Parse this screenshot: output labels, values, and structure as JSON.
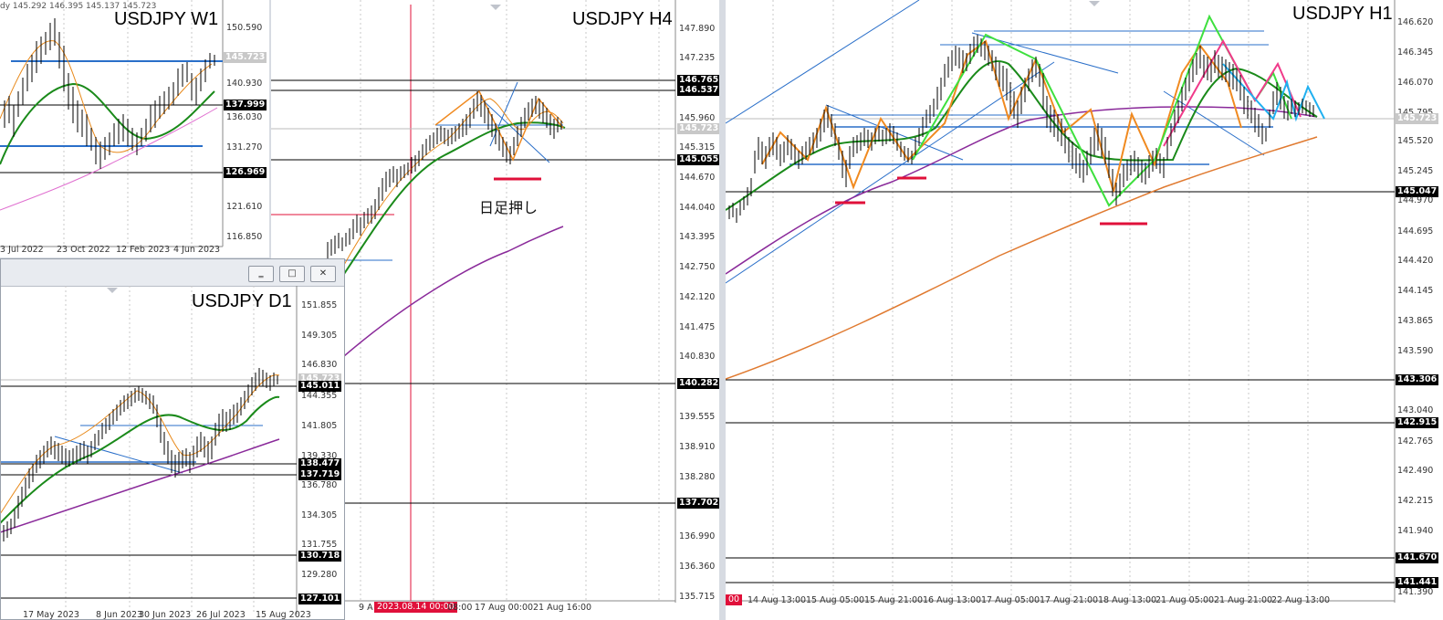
{
  "windows": {
    "w1": {
      "title": "USDJPY W1",
      "header_text": "dy  145.292 146.395 145.137 145.723",
      "price_axis": [
        "150.590",
        "145.723",
        "140.930",
        "137.999",
        "136.030",
        "131.270",
        "126.969",
        "121.610",
        "116.850"
      ],
      "price_tags": {
        "current": "145.723",
        "levels": [
          "137.999",
          "126.969"
        ]
      },
      "time_axis": [
        "3 Jul 2022",
        "23 Oct 2022",
        "12 Feb 2023",
        "4 Jun 2023"
      ]
    },
    "h4": {
      "title": "USDJPY H4",
      "price_axis": [
        "147.890",
        "147.235",
        "146.580",
        "145.960",
        "145.315",
        "144.670",
        "144.040",
        "143.395",
        "142.750",
        "142.120",
        "141.475",
        "140.830",
        "140.200",
        "139.555",
        "138.910",
        "138.280",
        "137.635",
        "136.990",
        "136.360",
        "135.715"
      ],
      "price_tags": {
        "current": "145.723",
        "levels": [
          "146.765",
          "146.537",
          "145.055",
          "140.282",
          "137.702"
        ]
      },
      "time_axis": [
        "9 A",
        "08:00",
        "17 Aug 00:00",
        "21 Aug 16:00"
      ],
      "date_highlight": "2023.08.14 00:00",
      "annotation": "日足押し"
    },
    "h1": {
      "title": "USDJPY H1",
      "price_axis": [
        "146.620",
        "146.345",
        "146.070",
        "145.795",
        "145.520",
        "145.245",
        "144.970",
        "144.695",
        "144.420",
        "144.145",
        "143.865",
        "143.590",
        "143.040",
        "142.765",
        "142.490",
        "142.215",
        "141.940",
        "141.665",
        "141.390"
      ],
      "price_tags": {
        "current": "145.723",
        "levels": [
          "145.047",
          "143.306",
          "142.915",
          "141.670",
          "141.441"
        ]
      },
      "time_axis": [
        "00",
        "14 Aug 13:00",
        "15 Aug 05:00",
        "15 Aug 21:00",
        "16 Aug 13:00",
        "17 Aug 05:00",
        "17 Aug 21:00",
        "18 Aug 13:00",
        "21 Aug 05:00",
        "21 Aug 21:00",
        "22 Aug 13:00"
      ]
    },
    "d1": {
      "title": "USDJPY D1",
      "price_axis": [
        "151.855",
        "149.305",
        "146.830",
        "145.723",
        "144.355",
        "141.805",
        "139.330",
        "136.780",
        "134.305",
        "131.755",
        "129.280",
        "127.101"
      ],
      "price_tags": {
        "current": "145.723",
        "levels": [
          "145.011",
          "138.477",
          "137.719",
          "130.718",
          "127.101"
        ]
      },
      "time_axis": [
        "17 May 2023",
        "8 Jun 2023",
        "30 Jun 2023",
        "26 Jul 2023",
        "15 Aug 2023"
      ],
      "buttons": {
        "minimize": "‗",
        "maximize": "□",
        "close": "✕"
      }
    }
  },
  "colors": {
    "bg": "#ffffff",
    "candle": "#000000",
    "ma_fast": "#e8891a",
    "ma_mid": "#1a8a1a",
    "ma_slow": "#8a2a9a",
    "ma_long": "#e07a30",
    "trend_blue": "#2a6fc9",
    "zigzag_orange": "#f08a20",
    "zigzag_green": "#3ee03e",
    "zigzag_pink": "#f03a8a",
    "zigzag_cyan": "#20b0f0",
    "marker_red": "#e0103a",
    "grid": "#c8c8c8"
  }
}
